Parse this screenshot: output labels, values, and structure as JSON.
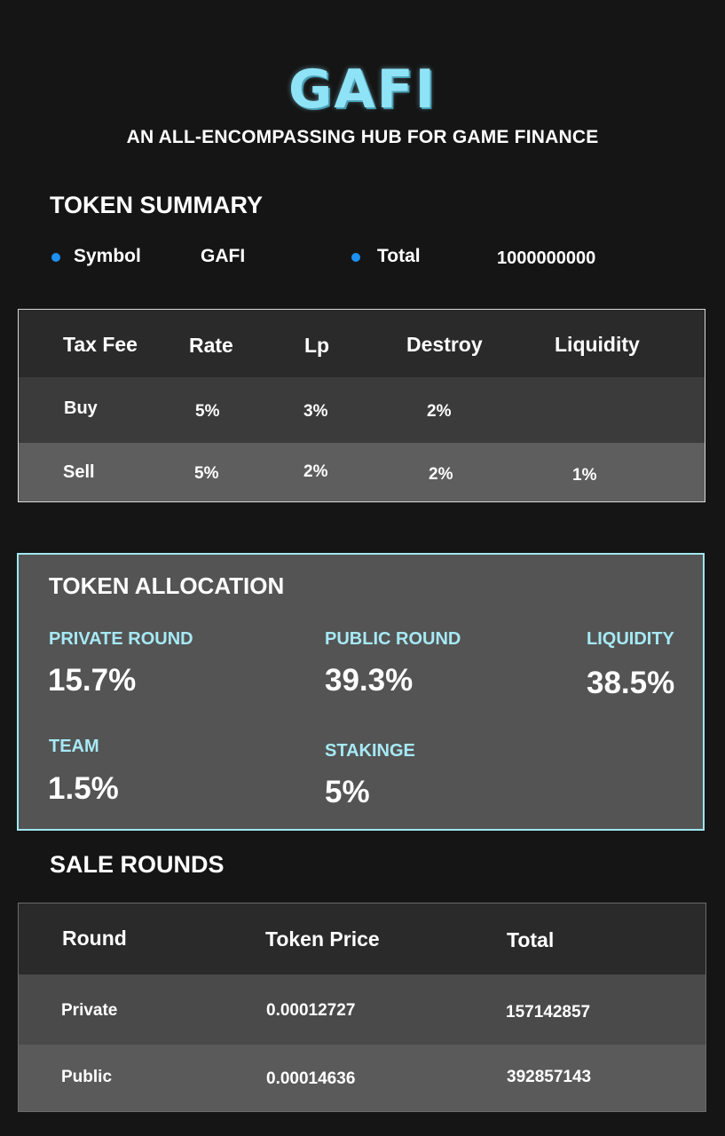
{
  "header": {
    "logo": "GAFI",
    "tagline": "AN ALL-ENCOMPASSING HUB FOR GAME FINANCE"
  },
  "summary": {
    "title": "TOKEN SUMMARY",
    "symbol_label": "Symbol",
    "symbol_value": "GAFI",
    "total_label": "Total",
    "total_value": "1000000000",
    "bullet_color": "#1e90f0"
  },
  "tax_table": {
    "headers": [
      "Tax Fee",
      "Rate",
      "Lp",
      "Destroy",
      "Liquidity"
    ],
    "rows": [
      [
        "Buy",
        "5%",
        "3%",
        "2%",
        ""
      ],
      [
        "Sell",
        "5%",
        "2%",
        "2%",
        "1%"
      ]
    ]
  },
  "allocation": {
    "title": "TOKEN  ALLOCATION",
    "accent_color": "#a6e9f4",
    "items": [
      {
        "label": "PRIVATE ROUND",
        "value": "15.7%"
      },
      {
        "label": "PUBLIC ROUND",
        "value": "39.3%"
      },
      {
        "label": "LIQUIDITY",
        "value": "38.5%"
      },
      {
        "label": "TEAM",
        "value": "1.5%"
      },
      {
        "label": "STAKINGE",
        "value": "5%"
      }
    ]
  },
  "sale_rounds": {
    "title": "SALE ROUNDS",
    "headers": [
      "Round",
      "Token Price",
      "Total"
    ],
    "rows": [
      [
        "Private",
        "0.00012727",
        "157142857"
      ],
      [
        "Public",
        "0.00014636",
        "392857143"
      ]
    ]
  }
}
